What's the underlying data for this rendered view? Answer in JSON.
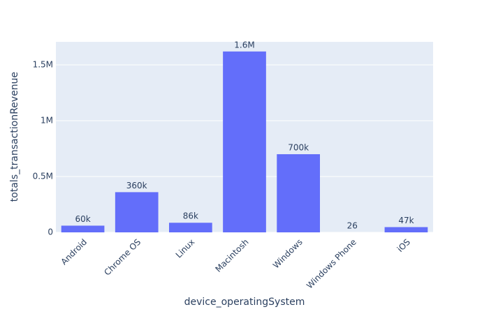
{
  "chart_data": {
    "type": "bar",
    "x_label": "device_operatingSystem",
    "y_label": "totals_transactionRevenue",
    "categories": [
      "Android",
      "Chrome OS",
      "Linux",
      "Macintosh",
      "Windows",
      "Windows Phone",
      "iOS"
    ],
    "values": [
      60000,
      360000,
      86000,
      1620000,
      700000,
      26,
      47000
    ],
    "value_labels": [
      "60k",
      "360k",
      "86k",
      "1.6M",
      "700k",
      "26",
      "47k"
    ],
    "color": "#636efa",
    "ylim": [
      0,
      1706000
    ],
    "yticks": [
      0,
      {
        "value": 500000,
        "label": "0.5M"
      },
      {
        "value": 1000000,
        "label": "1M"
      },
      {
        "value": 1500000,
        "label": "1.5M"
      }
    ],
    "grid": true
  }
}
